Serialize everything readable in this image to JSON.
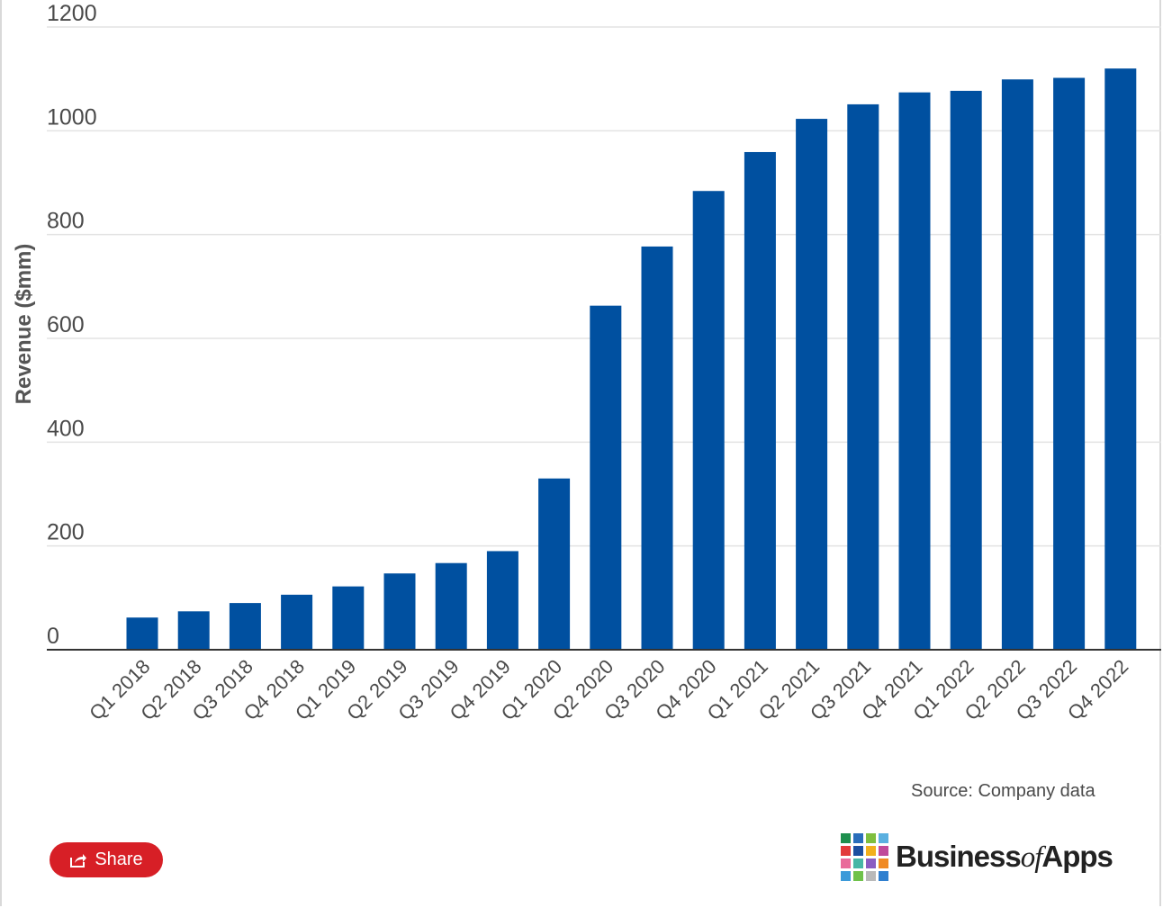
{
  "chart_data": {
    "type": "bar",
    "categories": [
      "Q1 2018",
      "Q2 2018",
      "Q3 2018",
      "Q4 2018",
      "Q1 2019",
      "Q2 2019",
      "Q3 2019",
      "Q4 2019",
      "Q1 2020",
      "Q2 2020",
      "Q3 2020",
      "Q4 2020",
      "Q1 2021",
      "Q2 2021",
      "Q3 2021",
      "Q4 2021",
      "Q1 2022",
      "Q2 2022",
      "Q3 2022",
      "Q4 2022"
    ],
    "values": [
      62,
      74,
      90,
      106,
      122,
      147,
      167,
      190,
      330,
      663,
      777,
      884,
      959,
      1023,
      1051,
      1074,
      1077,
      1099,
      1102,
      1120
    ],
    "title": "",
    "xlabel": "",
    "ylabel": "Revenue ($mm)",
    "ylim": [
      0,
      1200
    ],
    "yticks": [
      0,
      200,
      400,
      600,
      800,
      1000,
      1200
    ],
    "grid": true,
    "legend": "none",
    "bar_color": "#0050a0"
  },
  "source_text": "Source: Company data",
  "share_label": "Share",
  "logo": {
    "text_main": "Business",
    "text_of": "of",
    "text_end": "Apps",
    "colors": [
      "#1e8f4e",
      "#2a6ebb",
      "#7fbf3f",
      "#5ab0e0",
      "#e23b3b",
      "#1c4fa0",
      "#f2b01e",
      "#c04a9a",
      "#e96a9a",
      "#47b6a6",
      "#8a5cc2",
      "#f08a24",
      "#3c9ad9",
      "#6fc24a",
      "#b9b9b9",
      "#2f7fcf"
    ]
  },
  "icons": {
    "share": "share-icon"
  }
}
